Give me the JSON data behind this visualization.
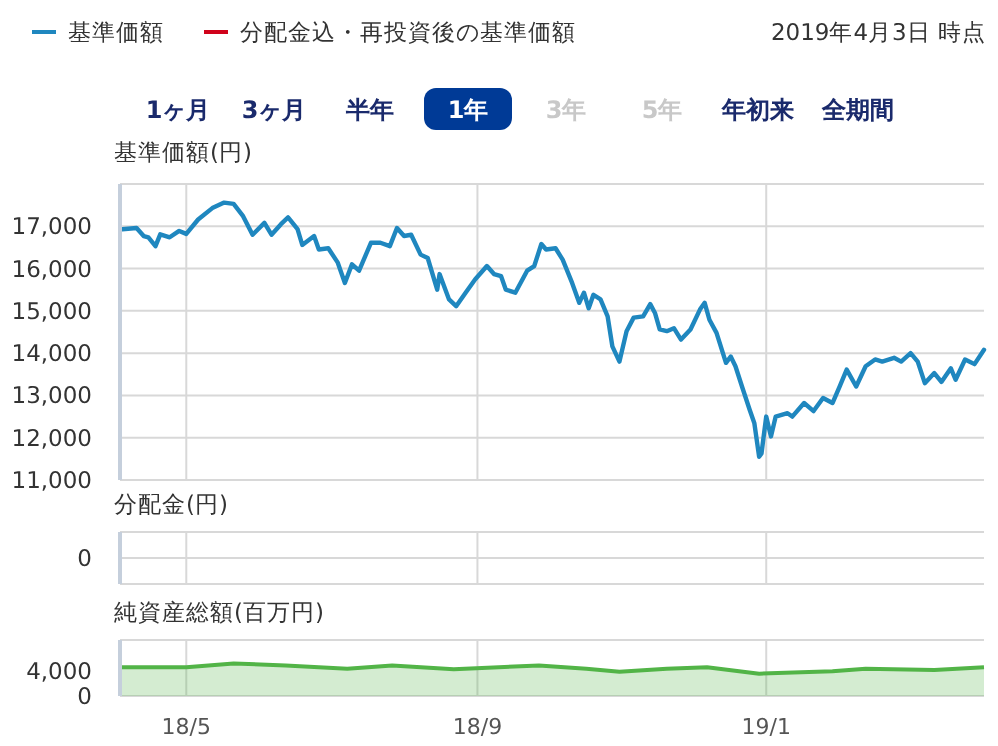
{
  "chart_data": [
    {
      "type": "line",
      "ylabel": "基準価額(円)",
      "legend": "top left",
      "annotations": [
        "2019年4月3日 時点",
        "1ヶ月",
        "3ヶ月",
        "半年",
        "1年",
        "3年",
        "5年",
        "年初来",
        "全期間"
      ],
      "xlim": [
        "2018-04-03",
        "2019-04-03"
      ],
      "xticks": [
        {
          "value": "2018-05-01",
          "label": null
        },
        {
          "value": "2018-09-01",
          "label": null
        },
        {
          "value": "2019-01-01",
          "label": null
        }
      ],
      "ylim": [
        11000,
        18000
      ],
      "yticks": [
        {
          "value": 11000,
          "label": "11,000"
        },
        {
          "value": 12000,
          "label": "12,000"
        },
        {
          "value": 13000,
          "label": "13,000"
        },
        {
          "value": 14000,
          "label": "14,000"
        },
        {
          "value": 15000,
          "label": "15,000"
        },
        {
          "value": 16000,
          "label": "16,000"
        },
        {
          "value": 17000,
          "label": "17,000"
        }
      ],
      "grid": true,
      "tick_labels": "y",
      "x": [
        "2018-04-04",
        "2018-04-10",
        "2018-04-13",
        "2018-04-15",
        "2018-04-18",
        "2018-04-20",
        "2018-04-24",
        "2018-04-28",
        "2018-05-01",
        "2018-05-06",
        "2018-05-12",
        "2018-05-17",
        "2018-05-21",
        "2018-05-25",
        "2018-05-29",
        "2018-06-03",
        "2018-06-06",
        "2018-06-10",
        "2018-06-13",
        "2018-06-17",
        "2018-06-19",
        "2018-06-24",
        "2018-06-26",
        "2018-06-30",
        "2018-07-04",
        "2018-07-07",
        "2018-07-10",
        "2018-07-13",
        "2018-07-18",
        "2018-07-22",
        "2018-07-26",
        "2018-07-29",
        "2018-08-01",
        "2018-08-04",
        "2018-08-08",
        "2018-08-11",
        "2018-08-15",
        "2018-08-16",
        "2018-08-20",
        "2018-08-23",
        "2018-08-27",
        "2018-08-31",
        "2018-09-05",
        "2018-09-08",
        "2018-09-11",
        "2018-09-13",
        "2018-09-17",
        "2018-09-22",
        "2018-09-25",
        "2018-09-28",
        "2018-09-30",
        "2018-10-04",
        "2018-10-07",
        "2018-10-11",
        "2018-10-14",
        "2018-10-16",
        "2018-10-18",
        "2018-10-20",
        "2018-10-23",
        "2018-10-26",
        "2018-10-28",
        "2018-10-31",
        "2018-11-03",
        "2018-11-06",
        "2018-11-10",
        "2018-11-13",
        "2018-11-15",
        "2018-11-17",
        "2018-11-20",
        "2018-11-23",
        "2018-11-26",
        "2018-11-30",
        "2018-12-04",
        "2018-12-06",
        "2018-12-08",
        "2018-12-11",
        "2018-12-15",
        "2018-12-17",
        "2018-12-19",
        "2018-12-22",
        "2018-12-25",
        "2018-12-27",
        "2018-12-29",
        "2018-12-30",
        "2019-01-01",
        "2019-01-03",
        "2019-01-05",
        "2019-01-10",
        "2019-01-12",
        "2019-01-17",
        "2019-01-21",
        "2019-01-25",
        "2019-01-29",
        "2019-02-01",
        "2019-02-04",
        "2019-02-08",
        "2019-02-12",
        "2019-02-16",
        "2019-02-19",
        "2019-02-24",
        "2019-02-27",
        "2019-03-03",
        "2019-03-06",
        "2019-03-09",
        "2019-03-13",
        "2019-03-16",
        "2019-03-20",
        "2019-03-22",
        "2019-03-26",
        "2019-03-30",
        "2019-04-03"
      ],
      "series": [
        {
          "name": "基準価額",
          "color": "#1f87bf",
          "values": [
            16930,
            16960,
            16770,
            16740,
            16530,
            16810,
            16740,
            16890,
            16820,
            17160,
            17430,
            17560,
            17530,
            17240,
            16800,
            17080,
            16800,
            17050,
            17210,
            16930,
            16560,
            16770,
            16450,
            16480,
            16140,
            15660,
            16100,
            15950,
            16610,
            16610,
            16530,
            16960,
            16770,
            16800,
            16330,
            16250,
            15500,
            15870,
            15270,
            15110,
            15430,
            15740,
            16060,
            15870,
            15820,
            15500,
            15430,
            15950,
            16060,
            16580,
            16450,
            16480,
            16210,
            15660,
            15190,
            15430,
            15060,
            15380,
            15270,
            14870,
            14160,
            13800,
            14520,
            14840,
            14870,
            15160,
            14950,
            14560,
            14520,
            14590,
            14320,
            14560,
            15030,
            15190,
            14790,
            14480,
            13770,
            13920,
            13690,
            13170,
            12660,
            12340,
            11550,
            11630,
            12500,
            12030,
            12500,
            12580,
            12500,
            12820,
            12630,
            12940,
            12820,
            13210,
            13610,
            13210,
            13690,
            13850,
            13800,
            13890,
            13800,
            14000,
            13800,
            13290,
            13530,
            13320,
            13640,
            13370,
            13850,
            13740,
            14080
          ]
        },
        {
          "name": "分配金込・再投資後の基準価額",
          "color": "#d0021b",
          "values": [
            null,
            null,
            null,
            null,
            null,
            null,
            null,
            null,
            null,
            null,
            null,
            null,
            null,
            null,
            null,
            null,
            null,
            null,
            null,
            null,
            null,
            null,
            null,
            null,
            null,
            null,
            null,
            null,
            null,
            null,
            null,
            null,
            null,
            null,
            null,
            null,
            null,
            null,
            null,
            null,
            null,
            null,
            null,
            null,
            null,
            null,
            null,
            null,
            null,
            null,
            null,
            null,
            null,
            null,
            null,
            null,
            null,
            null,
            null,
            null,
            null,
            null,
            null,
            null,
            null,
            null,
            null,
            null,
            null,
            null,
            null,
            null,
            null,
            null,
            null,
            null,
            null,
            null,
            null,
            null,
            null,
            null,
            null,
            null,
            null,
            null,
            null,
            null,
            null,
            null,
            null,
            null,
            null,
            null,
            null,
            null,
            null,
            null,
            null,
            null,
            null,
            null,
            null,
            null,
            null,
            null,
            null,
            null,
            null,
            null,
            null
          ]
        }
      ]
    },
    {
      "type": "other",
      "ylabel": "分配金(円)",
      "annotations": [
        "0"
      ]
    },
    {
      "type": "area",
      "ylabel": "純資産総額(百万円)",
      "xlim": [
        "2018-04-03",
        "2019-04-03"
      ],
      "xticks": [
        {
          "value": "2018-05-01",
          "label": "18/5"
        },
        {
          "value": "2018-09-01",
          "label": "18/9"
        },
        {
          "value": "2019-01-01",
          "label": "19/1"
        }
      ],
      "ylim": [
        0,
        8800
      ],
      "yticks": [
        {
          "value": 4000,
          "label": "4,000"
        },
        0
      ],
      "grid": "x",
      "x": [
        "2018-04-03",
        "2018-05-01",
        "2018-05-21",
        "2018-06-12",
        "2018-07-08",
        "2018-07-27",
        "2018-08-22",
        "2018-09-27",
        "2018-10-17",
        "2018-10-31",
        "2018-11-20",
        "2018-12-07",
        "2018-12-29",
        "2019-01-29",
        "2019-02-12",
        "2019-03-13",
        "2019-04-03"
      ],
      "series": [
        {
          "color": "#52b447",
          "values": [
            4500,
            4500,
            5100,
            4800,
            4300,
            4800,
            4200,
            4800,
            4300,
            3800,
            4300,
            4500,
            3500,
            3900,
            4300,
            4100,
            4500
          ]
        }
      ]
    }
  ]
}
